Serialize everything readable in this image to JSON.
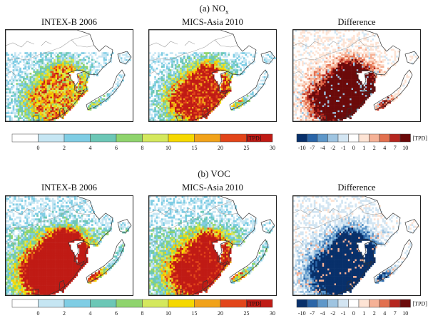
{
  "sections": [
    {
      "label_prefix": "(a) NO",
      "label_subscript": "x",
      "panels": [
        {
          "title": "INTEX-B 2006",
          "kind": "emission",
          "intensity": 0.55
        },
        {
          "title": "MICS-Asia 2010",
          "kind": "emission",
          "intensity": 0.75
        },
        {
          "title": "Difference",
          "kind": "difference",
          "sign": "positive"
        }
      ]
    },
    {
      "label_prefix": "(b) VOC",
      "label_subscript": "",
      "panels": [
        {
          "title": "INTEX-B 2006",
          "kind": "emission",
          "intensity": 1.0
        },
        {
          "title": "MICS-Asia 2010",
          "kind": "emission",
          "intensity": 0.7
        },
        {
          "title": "Difference",
          "kind": "difference",
          "sign": "negative"
        }
      ]
    }
  ],
  "emission_legend": {
    "ticks": [
      "0",
      "2",
      "4",
      "6",
      "8",
      "10",
      "15",
      "20",
      "25",
      "30"
    ],
    "unit": "[TPD]",
    "colors": [
      "#ffffff",
      "#c6e6f3",
      "#7fcde4",
      "#6cc7b6",
      "#8fd46d",
      "#d4e85d",
      "#f5d800",
      "#f1a21a",
      "#e2451a",
      "#c01b15"
    ]
  },
  "difference_legend": {
    "ticks": [
      "-10",
      "-7",
      "-4",
      "-2",
      "-1",
      "0",
      "1",
      "2",
      "4",
      "7",
      "10"
    ],
    "unit": "[TPD]",
    "colors": [
      "#08306b",
      "#2a65a8",
      "#5e97c9",
      "#9ec4e1",
      "#d3e5f2",
      "#ffffff",
      "#fde3d4",
      "#f5b196",
      "#e2704f",
      "#b5261f",
      "#6b0a0a"
    ]
  },
  "colors": {
    "land_outline": "#333333",
    "country_border": "#a0a0a0",
    "panel_border": "#222222"
  }
}
